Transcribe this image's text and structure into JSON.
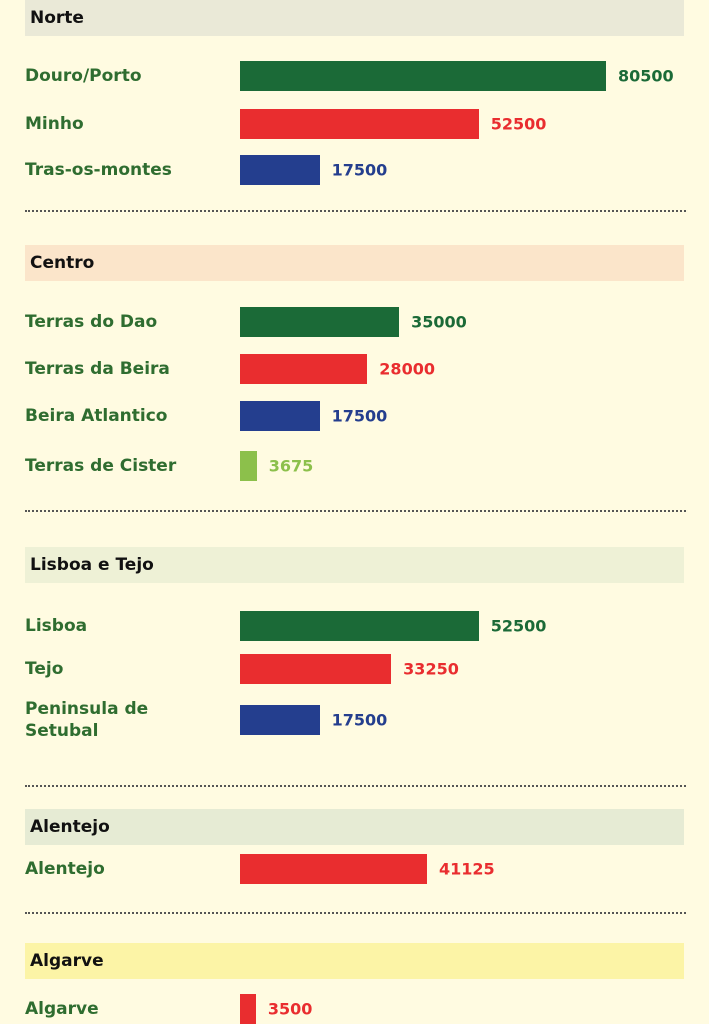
{
  "chart_data": [
    {
      "type": "bar",
      "title": "Norte",
      "header_color": "#eae9d7",
      "categories": [
        "Douro/Porto",
        "Minho",
        "Tras-os-montes"
      ],
      "values": [
        80500,
        52500,
        17500
      ],
      "colors": [
        "#1b6a37",
        "#e92d2f",
        "#243e8e"
      ]
    },
    {
      "type": "bar",
      "title": "Centro",
      "header_color": "#fbe5ca",
      "categories": [
        "Terras do Dao",
        "Terras da Beira",
        "Beira Atlantico",
        "Terras de Cister"
      ],
      "values": [
        35000,
        28000,
        17500,
        3675
      ],
      "colors": [
        "#1b6a37",
        "#e92d2f",
        "#243e8e",
        "#8cc04b"
      ]
    },
    {
      "type": "bar",
      "title": "Lisboa e Tejo",
      "header_color": "#eef1d6",
      "categories": [
        "Lisboa",
        "Tejo",
        "Peninsula de Setubal"
      ],
      "values": [
        52500,
        33250,
        17500
      ],
      "colors": [
        "#1b6a37",
        "#e92d2f",
        "#243e8e"
      ]
    },
    {
      "type": "bar",
      "title": "Alentejo",
      "header_color": "#e6ebd4",
      "categories": [
        "Alentejo"
      ],
      "values": [
        41125
      ],
      "colors": [
        "#e92d2f"
      ]
    },
    {
      "type": "bar",
      "title": "Algarve",
      "header_color": "#fcf4a6",
      "categories": [
        "Algarve"
      ],
      "values": [
        3500
      ],
      "colors": [
        "#e92d2f"
      ]
    }
  ]
}
